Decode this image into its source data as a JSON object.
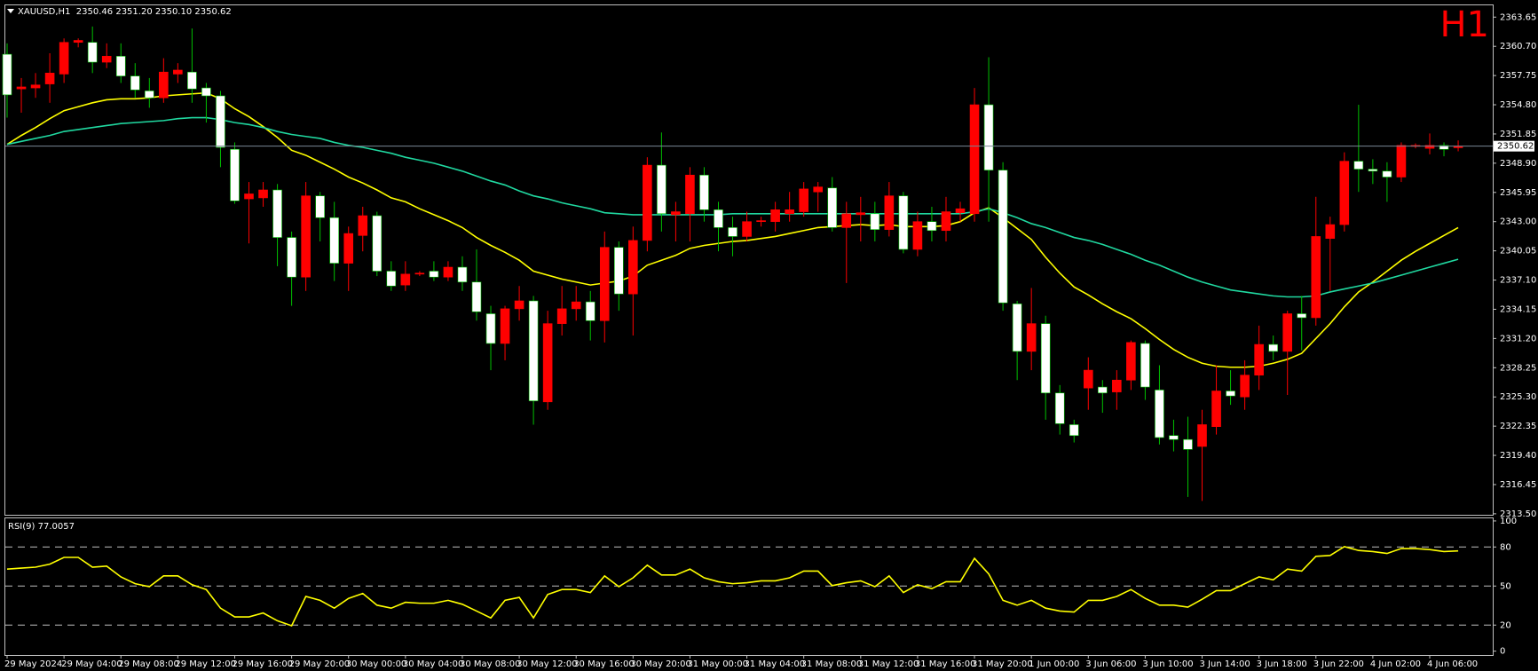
{
  "chart_data": [
    {
      "type": "candlestick",
      "title": "XAUUSD,H1  2350.46 2351.20 2350.10 2350.62",
      "timeframe_label": "H1",
      "categories": [
        "29 May 2024",
        null,
        null,
        null,
        "29 May 04:00",
        null,
        null,
        null,
        "29 May 08:00",
        null,
        null,
        null,
        "29 May 12:00",
        null,
        null,
        null,
        "29 May 16:00",
        null,
        null,
        null,
        "29 May 20:00",
        null,
        null,
        null,
        "30 May 00:00",
        null,
        null,
        null,
        "30 May 04:00",
        null,
        null,
        null,
        "30 May 08:00",
        null,
        null,
        null,
        "30 May 12:00",
        null,
        null,
        null,
        "30 May 16:00",
        null,
        null,
        null,
        "30 May 20:00",
        null,
        null,
        null,
        "31 May 00:00",
        null,
        null,
        null,
        "31 May 04:00",
        null,
        null,
        null,
        "31 May 08:00",
        null,
        null,
        null,
        "31 May 12:00",
        null,
        null,
        null,
        "31 May 16:00",
        null,
        null,
        null,
        "31 May 20:00",
        null,
        null,
        null,
        "1 Jun 00:00",
        null,
        null,
        null,
        "3 Jun 06:00",
        null,
        null,
        null,
        "3 Jun 10:00",
        null,
        null,
        null,
        "3 Jun 14:00",
        null,
        null,
        null,
        "3 Jun 18:00",
        null,
        null,
        null,
        "3 Jun 22:00",
        null,
        null,
        null,
        "4 Jun 02:00",
        null,
        null,
        null,
        "4 Jun 06:00",
        null,
        null
      ],
      "open": [
        2359.9,
        2356.4,
        2356.5,
        2356.9,
        2357.9,
        2361.1,
        2361.1,
        2359.1,
        2359.7,
        2357.7,
        2356.2,
        2355.5,
        2357.9,
        2358.1,
        2356.5,
        2355.7,
        2350.3,
        2345.3,
        2345.4,
        2346.2,
        2341.4,
        2337.4,
        2345.6,
        2343.4,
        2338.8,
        2341.6,
        2343.6,
        2338.0,
        2336.6,
        2337.7,
        2338.0,
        2337.4,
        2338.4,
        2336.9,
        2333.7,
        2330.7,
        2334.2,
        2335.0,
        2324.8,
        2332.7,
        2334.2,
        2334.9,
        2333.0,
        2340.4,
        2335.7,
        2341.1,
        2348.7,
        2343.7,
        2343.8,
        2347.7,
        2344.2,
        2342.4,
        2341.5,
        2343.0,
        2343.0,
        2343.8,
        2344.0,
        2346.0,
        2346.4,
        2342.4,
        2343.7,
        2343.8,
        2342.2,
        2345.6,
        2340.2,
        2343.0,
        2342.1,
        2343.9,
        2343.8,
        2354.8,
        2348.2,
        2334.7,
        2329.9,
        2332.7,
        2325.7,
        2322.5,
        2326.2,
        2326.3,
        2325.8,
        2327.0,
        2330.7,
        2326.0,
        2321.4,
        2321.0,
        2320.3,
        2322.3,
        2325.9,
        2325.3,
        2327.5,
        2330.6,
        2329.9,
        2333.7,
        2333.3,
        2341.3,
        2342.7,
        2349.1,
        2348.3,
        2348.1,
        2347.5,
        2350.6,
        2350.4,
        2350.7,
        2350.46
      ],
      "high": [
        2361.0,
        2357.5,
        2358.0,
        2360.0,
        2361.5,
        2361.5,
        2362.7,
        2361.0,
        2361.0,
        2359.0,
        2357.5,
        2359.5,
        2359.0,
        2362.5,
        2357.0,
        2356.2,
        2351.0,
        2347.0,
        2347.0,
        2346.8,
        2342.0,
        2347.0,
        2346.0,
        2345.0,
        2342.5,
        2344.5,
        2344.0,
        2339.0,
        2339.0,
        2338.0,
        2339.0,
        2339.0,
        2339.5,
        2340.2,
        2334.5,
        2334.5,
        2336.5,
        2335.5,
        2334.0,
        2336.5,
        2336.5,
        2336.0,
        2342.0,
        2341.0,
        2342.5,
        2349.5,
        2352.0,
        2345.0,
        2348.5,
        2348.5,
        2345.0,
        2343.5,
        2344.0,
        2343.5,
        2345.0,
        2346.0,
        2347.0,
        2347.0,
        2347.5,
        2345.0,
        2345.5,
        2345.0,
        2347.0,
        2346.0,
        2344.0,
        2344.5,
        2345.5,
        2345.0,
        2356.5,
        2359.6,
        2349.0,
        2335.0,
        2336.3,
        2333.5,
        2326.5,
        2323.0,
        2329.3,
        2327.0,
        2328.0,
        2331.0,
        2331.0,
        2328.5,
        2323.0,
        2323.3,
        2324.0,
        2328.5,
        2328.0,
        2329.0,
        2332.5,
        2331.5,
        2334.0,
        2335.5,
        2345.5,
        2343.5,
        2350.0,
        2354.8,
        2349.3,
        2349.0,
        2351.0,
        2350.9,
        2351.9,
        2351.0,
        2351.2
      ],
      "low": [
        2353.5,
        2354.0,
        2355.5,
        2355.0,
        2357.0,
        2360.6,
        2358.0,
        2358.5,
        2357.0,
        2355.5,
        2354.5,
        2355.0,
        2357.0,
        2355.0,
        2353.0,
        2348.5,
        2344.8,
        2340.8,
        2344.5,
        2338.5,
        2334.5,
        2336.0,
        2341.0,
        2337.0,
        2336.0,
        2340.0,
        2337.5,
        2336.0,
        2336.0,
        2337.5,
        2337.0,
        2337.0,
        2336.0,
        2333.0,
        2328.0,
        2329.0,
        2333.0,
        2322.5,
        2324.0,
        2331.5,
        2333.0,
        2331.0,
        2330.8,
        2334.0,
        2331.5,
        2340.0,
        2342.0,
        2341.0,
        2341.0,
        2343.0,
        2340.0,
        2339.5,
        2341.0,
        2342.5,
        2342.0,
        2343.0,
        2343.5,
        2344.0,
        2342.0,
        2336.8,
        2341.0,
        2341.0,
        2341.5,
        2339.8,
        2339.5,
        2341.0,
        2341.0,
        2343.0,
        2343.0,
        2343.0,
        2334.0,
        2327.0,
        2328.0,
        2323.0,
        2321.5,
        2320.7,
        2324.0,
        2323.7,
        2324.0,
        2326.0,
        2325.0,
        2320.5,
        2319.8,
        2315.2,
        2314.8,
        2321.5,
        2324.5,
        2324.0,
        2326.0,
        2329.0,
        2325.5,
        2330.0,
        2332.5,
        2336.0,
        2342.0,
        2346.0,
        2346.8,
        2345.0,
        2347.0,
        2350.4,
        2349.8,
        2349.6,
        2350.1
      ],
      "close": [
        2355.8,
        2356.6,
        2356.8,
        2358.0,
        2361.1,
        2361.3,
        2359.1,
        2359.7,
        2357.7,
        2356.3,
        2355.5,
        2358.1,
        2358.3,
        2356.4,
        2355.7,
        2350.5,
        2345.1,
        2345.8,
        2346.2,
        2341.4,
        2337.4,
        2345.6,
        2343.4,
        2338.8,
        2341.8,
        2343.6,
        2338.0,
        2336.5,
        2337.7,
        2337.8,
        2337.4,
        2338.4,
        2336.9,
        2333.9,
        2330.7,
        2334.2,
        2335.0,
        2324.9,
        2332.7,
        2334.2,
        2334.9,
        2333.0,
        2340.4,
        2335.7,
        2341.1,
        2348.7,
        2343.8,
        2344.0,
        2347.7,
        2344.2,
        2342.4,
        2341.5,
        2343.0,
        2343.1,
        2344.2,
        2344.2,
        2346.3,
        2346.5,
        2342.4,
        2343.8,
        2343.9,
        2342.2,
        2345.6,
        2340.2,
        2343.0,
        2342.1,
        2344.0,
        2344.3,
        2354.8,
        2348.2,
        2334.8,
        2329.9,
        2332.7,
        2325.7,
        2322.6,
        2321.4,
        2328.0,
        2325.7,
        2327.0,
        2330.8,
        2326.3,
        2321.2,
        2321.0,
        2320.0,
        2322.5,
        2325.9,
        2325.4,
        2327.5,
        2330.6,
        2329.9,
        2333.7,
        2333.3,
        2341.5,
        2342.7,
        2349.1,
        2348.3,
        2348.1,
        2347.5,
        2350.7,
        2350.7,
        2350.7,
        2350.3,
        2350.62
      ],
      "overlays": [
        {
          "color": "#ffff00",
          "values": [
            2350.8,
            2351.7,
            2352.5,
            2353.4,
            2354.2,
            2354.6,
            2355.0,
            2355.3,
            2355.4,
            2355.4,
            2355.5,
            2355.7,
            2355.8,
            2355.9,
            2356.0,
            2355.4,
            2354.4,
            2353.6,
            2352.6,
            2351.5,
            2350.2,
            2349.7,
            2349.0,
            2348.3,
            2347.5,
            2346.9,
            2346.2,
            2345.4,
            2345.0,
            2344.3,
            2343.7,
            2343.1,
            2342.4,
            2341.4,
            2340.6,
            2339.9,
            2339.1,
            2338.0,
            2337.6,
            2337.2,
            2336.9,
            2336.6,
            2336.8,
            2337.0,
            2337.5,
            2338.6,
            2339.1,
            2339.6,
            2340.3,
            2340.6,
            2340.8,
            2341.0,
            2341.1,
            2341.3,
            2341.5,
            2341.8,
            2342.1,
            2342.4,
            2342.5,
            2342.6,
            2342.7,
            2342.6,
            2342.7,
            2342.5,
            2342.5,
            2342.5,
            2342.6,
            2343.0,
            2343.9,
            2344.4,
            2343.4,
            2342.3,
            2341.2,
            2339.4,
            2337.8,
            2336.4,
            2335.6,
            2334.7,
            2333.9,
            2333.2,
            2332.2,
            2331.1,
            2330.1,
            2329.3,
            2328.7,
            2328.4,
            2328.3,
            2328.3,
            2328.4,
            2328.7,
            2329.1,
            2329.7,
            2331.2,
            2332.7,
            2334.4,
            2335.9,
            2336.9,
            2338.0,
            2339.1,
            2340.0,
            2340.8,
            2341.6,
            2342.4
          ]
        },
        {
          "color": "#20d8a0",
          "values": [
            2350.8,
            2351.1,
            2351.4,
            2351.7,
            2352.1,
            2352.3,
            2352.5,
            2352.7,
            2352.9,
            2353.0,
            2353.1,
            2353.2,
            2353.4,
            2353.5,
            2353.5,
            2353.3,
            2353.0,
            2352.8,
            2352.5,
            2352.1,
            2351.8,
            2351.6,
            2351.4,
            2351.0,
            2350.7,
            2350.5,
            2350.2,
            2349.9,
            2349.5,
            2349.2,
            2348.9,
            2348.5,
            2348.1,
            2347.6,
            2347.1,
            2346.7,
            2346.1,
            2345.6,
            2345.3,
            2344.9,
            2344.6,
            2344.3,
            2343.9,
            2343.8,
            2343.7,
            2343.7,
            2343.7,
            2343.7,
            2343.7,
            2343.7,
            2343.7,
            2343.8,
            2343.8,
            2343.8,
            2343.8,
            2343.8,
            2343.8,
            2343.8,
            2343.8,
            2343.8,
            2343.8,
            2343.8,
            2343.8,
            2343.8,
            2343.8,
            2343.8,
            2343.8,
            2343.8,
            2344.0,
            2344.3,
            2343.9,
            2343.4,
            2342.8,
            2342.4,
            2341.9,
            2341.4,
            2341.1,
            2340.7,
            2340.2,
            2339.7,
            2339.1,
            2338.6,
            2338.0,
            2337.4,
            2336.9,
            2336.5,
            2336.1,
            2335.9,
            2335.7,
            2335.5,
            2335.4,
            2335.4,
            2335.5,
            2335.9,
            2336.2,
            2336.5,
            2336.8,
            2337.2,
            2337.6,
            2338.0,
            2338.4,
            2338.8,
            2339.2
          ]
        }
      ],
      "colors": {
        "up": "#ff0000",
        "down": "#ffffff",
        "up_wick": "#ff0000",
        "down_wick": "#00c000",
        "timeframe_label": "#ff0000"
      },
      "current_price": 2350.62,
      "ylim": [
        2313.4,
        2364.84
      ],
      "yticks": [
        2363.65,
        {
          "value": 2360.7,
          "label": "2360.70"
        },
        2357.75,
        {
          "value": 2354.8,
          "label": "2354.80"
        },
        2351.85,
        {
          "value": 2348.9,
          "label": "2348.90"
        },
        2345.95,
        {
          "value": 2343.0,
          "label": "2343.00"
        },
        2340.05,
        {
          "value": 2337.1,
          "label": "2337.10"
        },
        2334.15,
        {
          "value": 2331.2,
          "label": "2331.20"
        },
        2328.25,
        {
          "value": 2325.3,
          "label": "2325.30"
        },
        2322.35,
        {
          "value": 2319.4,
          "label": "2319.40"
        },
        2316.45,
        {
          "value": 2313.5,
          "label": "2313.50"
        }
      ]
    },
    {
      "type": "line",
      "label": "RSI(9) 77.0057",
      "color": "#ffff00",
      "values": [
        63.0,
        63.8,
        64.5,
        66.8,
        72.0,
        72.0,
        64.5,
        65.3,
        57.0,
        51.8,
        49.5,
        57.8,
        57.8,
        51.0,
        47.3,
        33.0,
        26.3,
        26.3,
        29.3,
        23.3,
        19.5,
        42.0,
        39.0,
        33.0,
        40.5,
        44.3,
        35.3,
        33.0,
        37.5,
        36.8,
        36.8,
        39.0,
        36.0,
        30.8,
        25.5,
        39.0,
        41.3,
        25.5,
        43.5,
        47.3,
        47.3,
        45.0,
        57.8,
        49.5,
        56.3,
        66.0,
        58.5,
        58.5,
        63.0,
        56.3,
        53.3,
        51.8,
        52.5,
        54.0,
        54.0,
        56.3,
        61.5,
        61.5,
        50.3,
        52.5,
        54.0,
        49.5,
        57.8,
        45.0,
        51.0,
        48.0,
        53.3,
        53.3,
        71.3,
        59.3,
        39.0,
        35.3,
        39.0,
        33.0,
        30.8,
        30.0,
        39.0,
        39.0,
        42.0,
        47.3,
        40.5,
        35.3,
        35.3,
        33.8,
        39.8,
        46.5,
        46.5,
        51.8,
        57.0,
        54.8,
        63.0,
        61.5,
        72.8,
        73.5,
        80.3,
        77.3,
        76.5,
        75.0,
        78.8,
        78.8,
        78.0,
        76.5,
        77.0057
      ],
      "levels": [
        80,
        50,
        20
      ],
      "ylim": [
        -3,
        102
      ],
      "yticks": [
        100,
        80,
        50,
        20,
        0
      ]
    }
  ]
}
